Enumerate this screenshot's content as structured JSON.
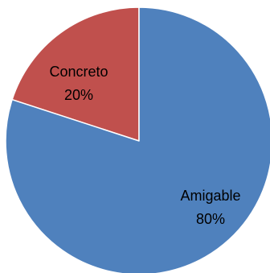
{
  "chart_data": {
    "type": "pie",
    "slices": [
      {
        "label": "Concreto",
        "percent_label": "20%",
        "value": 20,
        "color": "#C0504D"
      },
      {
        "label": "Amigable",
        "percent_label": "80%",
        "value": 80,
        "color": "#4F81BD"
      }
    ],
    "start_angle_deg": 0,
    "direction": "counterclockwise",
    "slice_border_color": "#FFFFFF"
  }
}
